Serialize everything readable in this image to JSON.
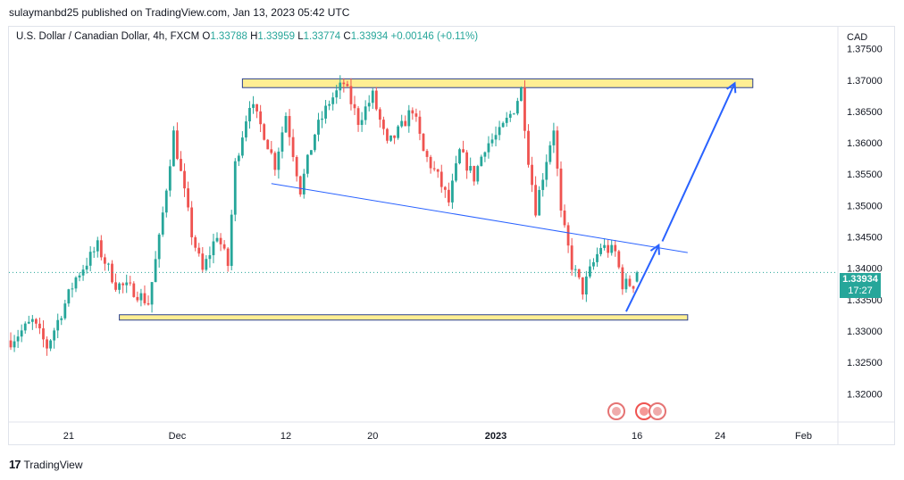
{
  "publisher": {
    "text": "sulaymanbd25 published on TradingView.com, Jan 13, 2023 05:42 UTC"
  },
  "legend": {
    "symbol": "U.S. Dollar / Canadian Dollar, 4h, FXCM",
    "o_label": "O",
    "o_value": "1.33788",
    "h_label": "H",
    "h_value": "1.33959",
    "l_label": "L",
    "l_value": "1.33774",
    "c_label": "C",
    "c_value": "1.33934",
    "change": "+0.00146 (+0.11%)"
  },
  "price_tag": {
    "price": "1.33934",
    "countdown": "17:27"
  },
  "footer": {
    "logo": "17",
    "brand": "TradingView"
  },
  "colors": {
    "up": "#26a69a",
    "down": "#ef5350",
    "zone_fill": "#ffeb80",
    "zone_border": "#2a3f8f",
    "trend": "#2962ff",
    "axis_text": "#131722",
    "price_line": "#26a69a"
  },
  "chart_data": {
    "type": "candlestick",
    "title": "U.S. Dollar / Canadian Dollar, 4h, FXCM",
    "currency_label": "CAD",
    "y_ticks": [
      "1.37500",
      "1.37000",
      "1.36500",
      "1.36000",
      "1.35500",
      "1.35000",
      "1.34500",
      "1.34000",
      "1.33500",
      "1.33000",
      "1.32500",
      "1.32000"
    ],
    "y_tick_values": [
      1.375,
      1.37,
      1.365,
      1.36,
      1.355,
      1.35,
      1.345,
      1.34,
      1.335,
      1.33,
      1.325,
      1.32
    ],
    "x_ticks": [
      {
        "label": "21",
        "bar": 16
      },
      {
        "label": "Dec",
        "bar": 46
      },
      {
        "label": "12",
        "bar": 76
      },
      {
        "label": "20",
        "bar": 100
      },
      {
        "label": "2023",
        "bar": 134
      },
      {
        "label": "16",
        "bar": 173
      },
      {
        "label": "24",
        "bar": 196
      },
      {
        "label": "Feb",
        "bar": 219
      }
    ],
    "ylim": [
      1.3155,
      1.3785
    ],
    "bars_total": 229,
    "close_path": [
      [
        0,
        1.3285
      ],
      [
        6,
        1.3315
      ],
      [
        10,
        1.3275
      ],
      [
        18,
        1.3385
      ],
      [
        24,
        1.3435
      ],
      [
        29,
        1.3375
      ],
      [
        34,
        1.3365
      ],
      [
        38,
        1.3345
      ],
      [
        41,
        1.3445
      ],
      [
        45,
        1.3615
      ],
      [
        50,
        1.3455
      ],
      [
        53,
        1.3395
      ],
      [
        57,
        1.3455
      ],
      [
        60,
        1.3405
      ],
      [
        62,
        1.3565
      ],
      [
        66,
        1.3665
      ],
      [
        70,
        1.3615
      ],
      [
        73,
        1.3565
      ],
      [
        76,
        1.3645
      ],
      [
        80,
        1.3525
      ],
      [
        84,
        1.3615
      ],
      [
        88,
        1.3665
      ],
      [
        92,
        1.3695
      ],
      [
        96,
        1.3635
      ],
      [
        100,
        1.3675
      ],
      [
        104,
        1.3595
      ],
      [
        108,
        1.3625
      ],
      [
        111,
        1.3655
      ],
      [
        114,
        1.3585
      ],
      [
        118,
        1.3545
      ],
      [
        121,
        1.3505
      ],
      [
        124,
        1.3585
      ],
      [
        128,
        1.3545
      ],
      [
        131,
        1.3595
      ],
      [
        135,
        1.3615
      ],
      [
        139,
        1.3655
      ],
      [
        141,
        1.3685
      ],
      [
        143,
        1.3575
      ],
      [
        145,
        1.3495
      ],
      [
        148,
        1.3575
      ],
      [
        150,
        1.3625
      ],
      [
        152,
        1.3485
      ],
      [
        155,
        1.3405
      ],
      [
        158,
        1.3365
      ],
      [
        160,
        1.3395
      ],
      [
        163,
        1.3435
      ],
      [
        167,
        1.3425
      ],
      [
        169,
        1.3375
      ],
      [
        172,
        1.3375
      ],
      [
        173,
        1.3393
      ]
    ],
    "last": {
      "open": 1.33788,
      "high": 1.33959,
      "low": 1.33774,
      "close": 1.33934,
      "change": 0.00146,
      "change_pct": 0.11
    },
    "annotations": {
      "resistance_zone": {
        "from_bar": 64,
        "to_bar": 205,
        "low": 1.3688,
        "high": 1.3702
      },
      "support_zone": {
        "from_bar": 30,
        "to_bar": 187,
        "low": 1.3318,
        "high": 1.3326
      },
      "trendline": {
        "from_bar": 72,
        "from_price": 1.3535,
        "to_bar": 187,
        "to_price": 1.3425
      },
      "arrow_1": {
        "from_bar": 170,
        "from_price": 1.3331,
        "to_bar": 179,
        "to_price": 1.3437
      },
      "arrow_2": {
        "from_bar": 180,
        "from_price": 1.3443,
        "to_bar": 200,
        "to_price": 1.3695
      }
    }
  }
}
